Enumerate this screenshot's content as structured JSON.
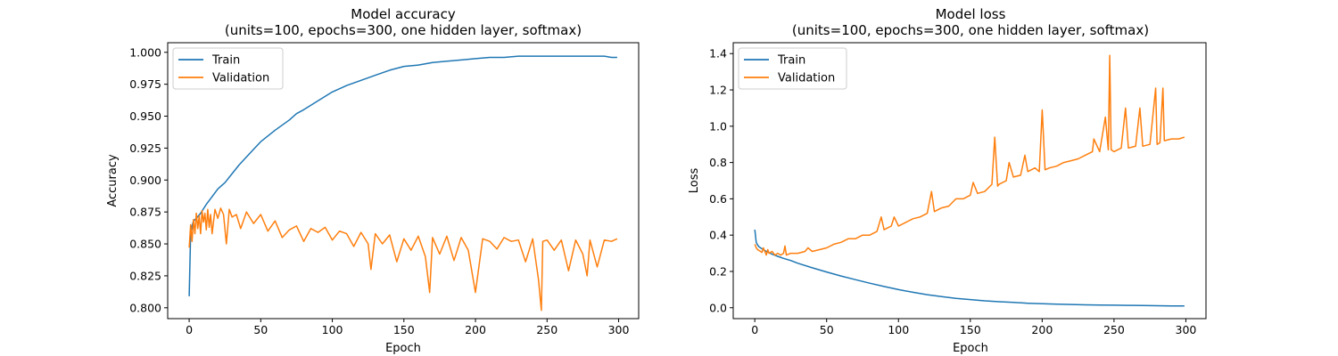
{
  "chart_data": [
    {
      "type": "line",
      "title": "Model accuracy",
      "subtitle": "(units=100, epochs=300, one hidden layer, softmax)",
      "xlabel": "Epoch",
      "ylabel": "Accuracy",
      "xlim": [
        -15,
        314
      ],
      "ylim": [
        0.7915,
        1.0075
      ],
      "xticks": [
        0,
        50,
        100,
        150,
        200,
        250,
        300
      ],
      "xtick_labels": [
        "0",
        "50",
        "100",
        "150",
        "200",
        "250",
        "300"
      ],
      "yticks": [
        0.8,
        0.825,
        0.85,
        0.875,
        0.9,
        0.925,
        0.95,
        0.975,
        1.0
      ],
      "ytick_labels": [
        "0.800",
        "0.825",
        "0.850",
        "0.875",
        "0.900",
        "0.925",
        "0.950",
        "0.975",
        "1.000"
      ],
      "legend_position": "top-left",
      "grid": false,
      "series": [
        {
          "name": "Train",
          "color": "#1f77b4",
          "x": [
            0,
            1,
            2,
            3,
            5,
            8,
            12,
            16,
            20,
            25,
            30,
            35,
            40,
            45,
            50,
            60,
            70,
            75,
            80,
            90,
            100,
            110,
            120,
            130,
            140,
            150,
            160,
            170,
            180,
            190,
            200,
            210,
            220,
            230,
            240,
            250,
            260,
            270,
            280,
            290,
            295,
            299
          ],
          "y": [
            0.809,
            0.858,
            0.864,
            0.868,
            0.87,
            0.874,
            0.881,
            0.887,
            0.893,
            0.898,
            0.905,
            0.912,
            0.918,
            0.924,
            0.93,
            0.939,
            0.947,
            0.952,
            0.955,
            0.962,
            0.969,
            0.974,
            0.978,
            0.982,
            0.986,
            0.989,
            0.99,
            0.992,
            0.993,
            0.994,
            0.995,
            0.996,
            0.996,
            0.997,
            0.997,
            0.997,
            0.997,
            0.997,
            0.997,
            0.997,
            0.996,
            0.996
          ]
        },
        {
          "name": "Validation",
          "color": "#ff7f0e",
          "x": [
            0,
            1,
            2,
            3,
            4,
            5,
            6,
            7,
            8,
            9,
            10,
            11,
            12,
            13,
            14,
            15,
            16,
            18,
            20,
            22,
            24,
            26,
            28,
            30,
            33,
            36,
            40,
            45,
            50,
            55,
            60,
            65,
            70,
            75,
            80,
            85,
            90,
            95,
            100,
            105,
            110,
            115,
            120,
            125,
            127,
            130,
            135,
            140,
            145,
            150,
            155,
            160,
            165,
            168,
            170,
            175,
            180,
            185,
            190,
            195,
            200,
            205,
            210,
            215,
            220,
            225,
            230,
            235,
            240,
            244,
            246,
            247,
            250,
            255,
            260,
            265,
            270,
            275,
            278,
            280,
            285,
            290,
            295,
            299
          ],
          "y": [
            0.847,
            0.865,
            0.852,
            0.869,
            0.858,
            0.874,
            0.862,
            0.872,
            0.858,
            0.876,
            0.867,
            0.874,
            0.861,
            0.877,
            0.863,
            0.873,
            0.858,
            0.877,
            0.87,
            0.878,
            0.873,
            0.85,
            0.877,
            0.871,
            0.873,
            0.862,
            0.875,
            0.866,
            0.873,
            0.86,
            0.868,
            0.855,
            0.861,
            0.864,
            0.852,
            0.862,
            0.859,
            0.863,
            0.853,
            0.86,
            0.858,
            0.848,
            0.859,
            0.85,
            0.83,
            0.858,
            0.85,
            0.857,
            0.836,
            0.854,
            0.845,
            0.856,
            0.84,
            0.812,
            0.855,
            0.842,
            0.856,
            0.837,
            0.855,
            0.845,
            0.812,
            0.854,
            0.852,
            0.846,
            0.855,
            0.852,
            0.853,
            0.836,
            0.854,
            0.822,
            0.798,
            0.852,
            0.853,
            0.845,
            0.853,
            0.829,
            0.853,
            0.842,
            0.825,
            0.853,
            0.832,
            0.853,
            0.852,
            0.854
          ]
        }
      ]
    },
    {
      "type": "line",
      "title": "Model loss",
      "subtitle": "(units=100, epochs=300, one hidden layer, softmax)",
      "xlabel": "Epoch",
      "ylabel": "Loss",
      "xlim": [
        -15,
        314
      ],
      "ylim": [
        -0.06,
        1.46
      ],
      "xticks": [
        0,
        50,
        100,
        150,
        200,
        250,
        300
      ],
      "xtick_labels": [
        "0",
        "50",
        "100",
        "150",
        "200",
        "250",
        "300"
      ],
      "yticks": [
        0.0,
        0.2,
        0.4,
        0.6,
        0.8,
        1.0,
        1.2,
        1.4
      ],
      "ytick_labels": [
        "0.0",
        "0.2",
        "0.4",
        "0.6",
        "0.8",
        "1.0",
        "1.2",
        "1.4"
      ],
      "legend_position": "top-left",
      "grid": false,
      "series": [
        {
          "name": "Train",
          "color": "#1f77b4",
          "x": [
            0,
            1,
            2,
            3,
            5,
            8,
            12,
            16,
            20,
            25,
            30,
            40,
            50,
            60,
            70,
            80,
            90,
            100,
            110,
            120,
            130,
            140,
            150,
            160,
            170,
            180,
            190,
            200,
            210,
            220,
            230,
            240,
            250,
            260,
            270,
            280,
            290,
            299
          ],
          "y": [
            0.43,
            0.36,
            0.345,
            0.335,
            0.325,
            0.31,
            0.295,
            0.283,
            0.272,
            0.26,
            0.245,
            0.22,
            0.197,
            0.175,
            0.155,
            0.135,
            0.117,
            0.1,
            0.085,
            0.072,
            0.061,
            0.052,
            0.045,
            0.038,
            0.033,
            0.029,
            0.025,
            0.022,
            0.02,
            0.018,
            0.016,
            0.015,
            0.014,
            0.013,
            0.012,
            0.011,
            0.01,
            0.01
          ]
        },
        {
          "name": "Validation",
          "color": "#ff7f0e",
          "x": [
            0,
            1,
            2,
            3,
            4,
            5,
            6,
            8,
            9,
            10,
            12,
            14,
            16,
            18,
            20,
            21,
            22,
            25,
            28,
            30,
            35,
            37,
            40,
            45,
            50,
            55,
            60,
            65,
            70,
            75,
            80,
            85,
            88,
            90,
            95,
            97,
            100,
            105,
            110,
            115,
            120,
            123,
            125,
            130,
            135,
            140,
            145,
            150,
            152,
            155,
            160,
            165,
            167,
            169,
            170,
            175,
            177,
            180,
            185,
            188,
            190,
            195,
            198,
            200,
            202,
            205,
            210,
            215,
            220,
            225,
            230,
            235,
            236,
            240,
            244,
            246,
            247,
            248,
            250,
            255,
            258,
            260,
            265,
            268,
            270,
            275,
            279,
            280,
            282,
            284,
            285,
            290,
            295,
            299
          ],
          "y": [
            0.35,
            0.33,
            0.32,
            0.315,
            0.31,
            0.305,
            0.33,
            0.29,
            0.32,
            0.3,
            0.31,
            0.29,
            0.3,
            0.29,
            0.3,
            0.34,
            0.29,
            0.3,
            0.3,
            0.3,
            0.31,
            0.33,
            0.31,
            0.32,
            0.33,
            0.35,
            0.36,
            0.38,
            0.38,
            0.4,
            0.4,
            0.42,
            0.5,
            0.43,
            0.45,
            0.5,
            0.45,
            0.47,
            0.49,
            0.5,
            0.52,
            0.64,
            0.53,
            0.55,
            0.56,
            0.6,
            0.6,
            0.62,
            0.69,
            0.63,
            0.64,
            0.68,
            0.94,
            0.67,
            0.68,
            0.7,
            0.8,
            0.72,
            0.73,
            0.84,
            0.75,
            0.77,
            0.75,
            1.09,
            0.76,
            0.77,
            0.78,
            0.8,
            0.81,
            0.82,
            0.84,
            0.86,
            0.93,
            0.86,
            1.05,
            0.87,
            1.39,
            0.87,
            0.86,
            0.88,
            1.1,
            0.88,
            0.89,
            1.1,
            0.89,
            0.9,
            1.21,
            0.9,
            0.91,
            1.21,
            0.92,
            0.93,
            0.93,
            0.94
          ]
        }
      ]
    }
  ]
}
